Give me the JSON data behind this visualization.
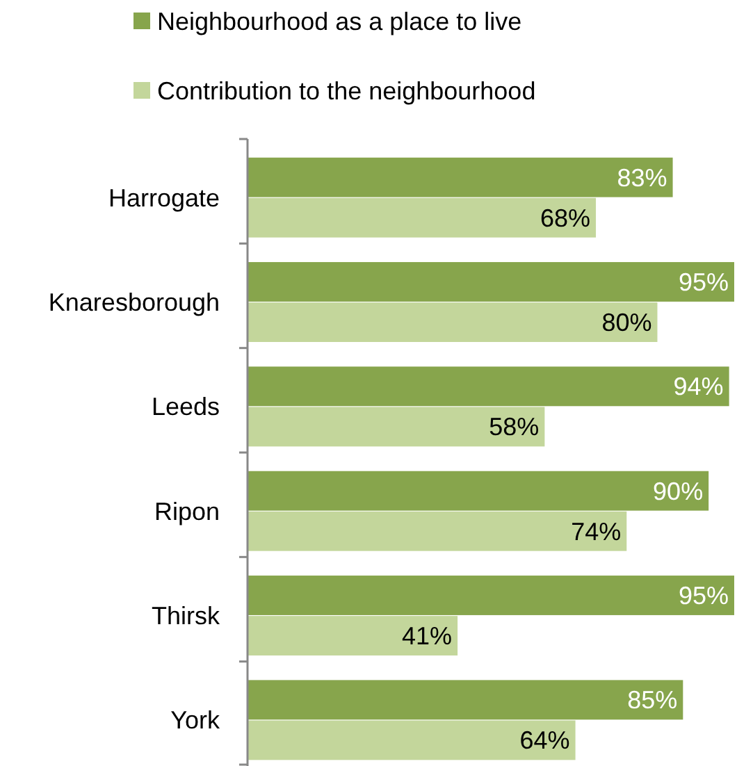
{
  "chart_data": {
    "type": "bar",
    "orientation": "horizontal",
    "legend": "top",
    "categories": [
      "Harrogate",
      "Knaresborough",
      "Leeds",
      "Ripon",
      "Thirsk",
      "York"
    ],
    "series": [
      {
        "name": "Neighbourhood as a place to live",
        "color": "#87a54c",
        "values": [
          83,
          95,
          94,
          90,
          95,
          85
        ],
        "value_labels": [
          "83%",
          "95%",
          "94%",
          "90%",
          "95%",
          "85%"
        ]
      },
      {
        "name": "Contribution to the neighbourhood",
        "color": "#c3d69b",
        "values": [
          68,
          80,
          58,
          74,
          41,
          64
        ],
        "value_labels": [
          "68%",
          "80%",
          "58%",
          "74%",
          "41%",
          "64%"
        ]
      }
    ]
  }
}
